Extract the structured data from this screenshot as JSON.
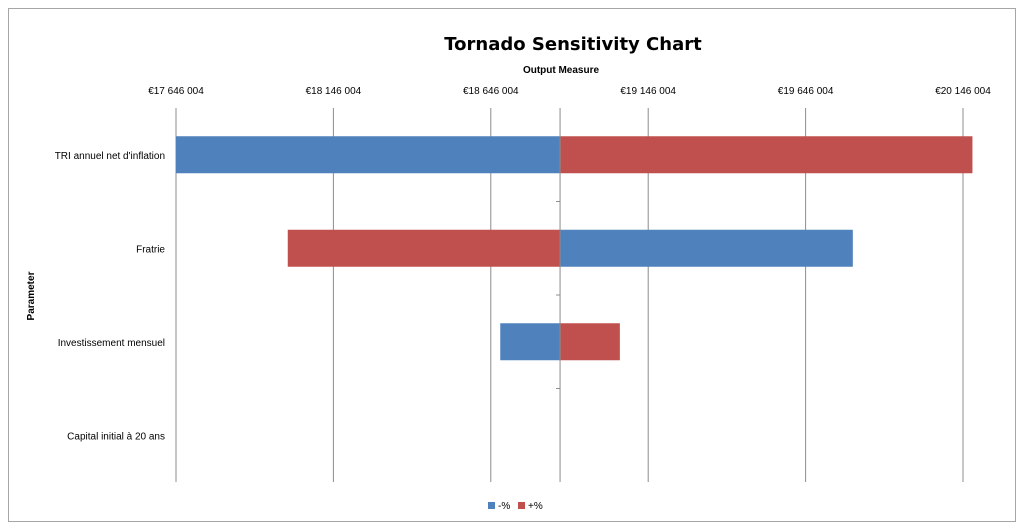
{
  "chart_data": {
    "type": "bar",
    "orientation": "horizontal",
    "title": "Tornado Sensitivity Chart",
    "xlabel": "Output Measure",
    "ylabel": "Parameter",
    "xlim": [
      17646004,
      20146004
    ],
    "base_value": 18866004,
    "x_ticks": [
      17646004,
      18146004,
      18646004,
      19146004,
      19646004,
      20146004
    ],
    "x_tick_labels": [
      "€17 646 004",
      "€18 146 004",
      "€18 646 004",
      "€19 146 004",
      "€19 646 004",
      "€20 146 004"
    ],
    "categories": [
      "TRI annuel net d'inflation",
      "Fratrie",
      "Investissement mensuel",
      "Capital initial  à 20 ans"
    ],
    "series": [
      {
        "name": "-%",
        "color": "#4f81bd",
        "values": [
          17646004,
          19796004,
          18676004,
          18866004
        ]
      },
      {
        "name": "+%",
        "color": "#c0504d",
        "values": [
          20176004,
          18001004,
          19056004,
          18866004
        ]
      }
    ],
    "grid": true,
    "legend_position": "bottom"
  }
}
